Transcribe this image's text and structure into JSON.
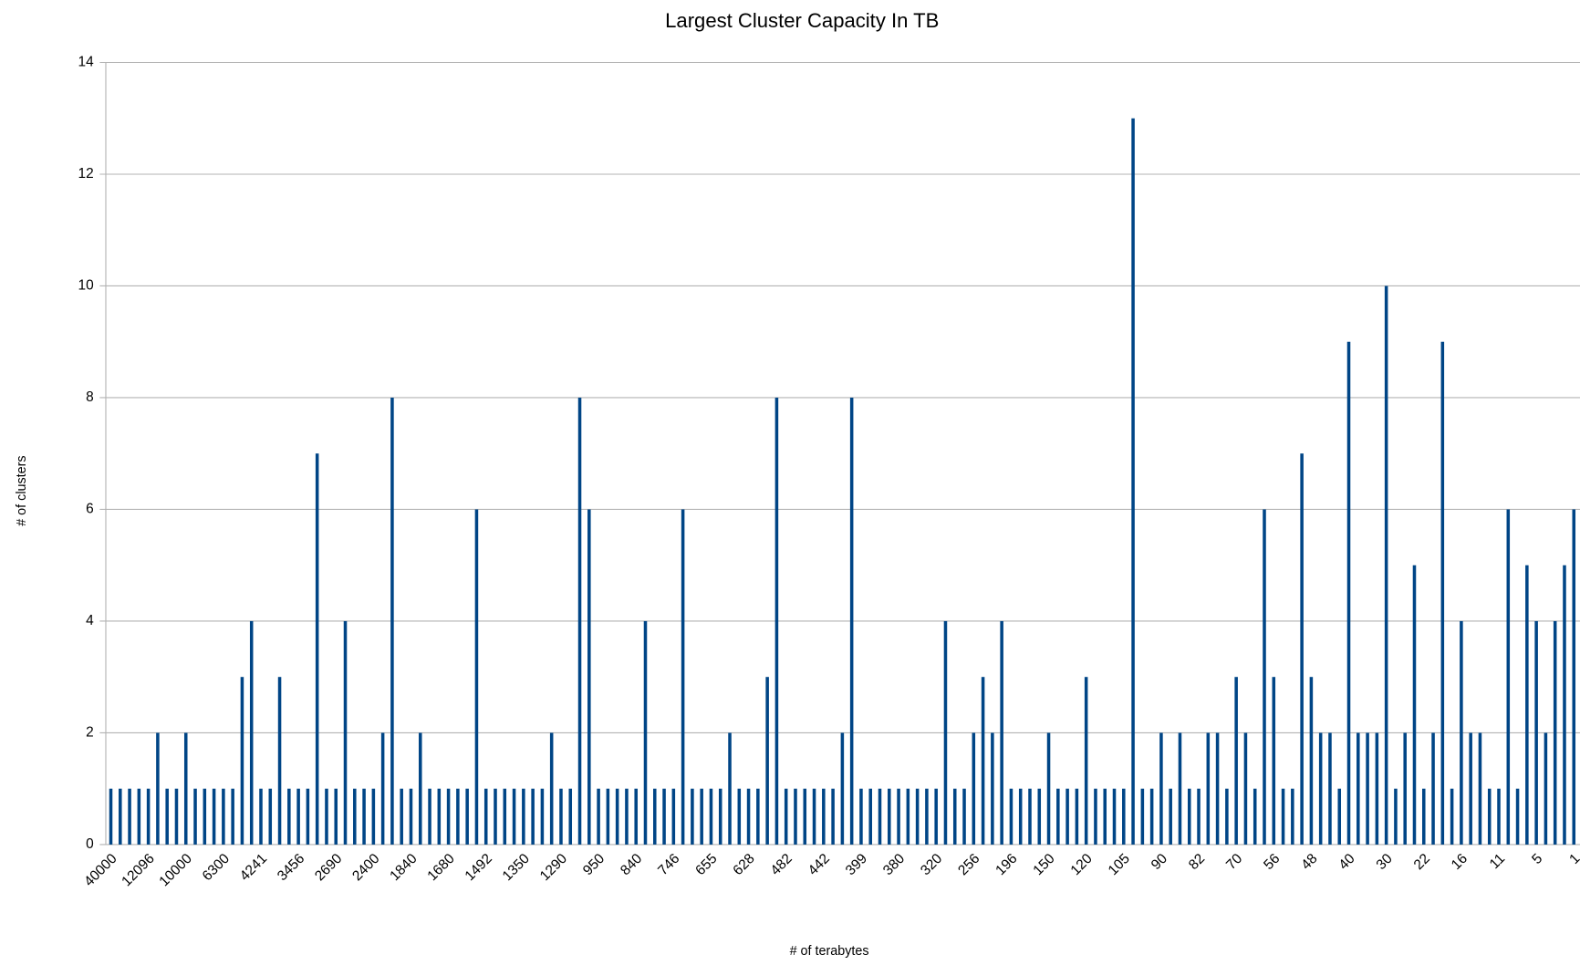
{
  "chart_data": {
    "type": "bar",
    "title": "Largest Cluster Capacity In TB",
    "x_label": "# of terabytes",
    "y_label": "# of clusters",
    "categories": [
      "40000",
      null,
      null,
      null,
      "12096",
      null,
      null,
      null,
      "10000",
      null,
      null,
      null,
      "6300",
      null,
      null,
      null,
      "4241",
      null,
      null,
      null,
      "3456",
      null,
      null,
      null,
      "2690",
      null,
      null,
      null,
      "2400",
      null,
      null,
      null,
      "1840",
      null,
      null,
      null,
      "1680",
      null,
      null,
      null,
      "1492",
      null,
      null,
      null,
      "1350",
      null,
      null,
      null,
      "1290",
      null,
      null,
      null,
      "950",
      null,
      null,
      null,
      "840",
      null,
      null,
      null,
      "746",
      null,
      null,
      null,
      "655",
      null,
      null,
      null,
      "628",
      null,
      null,
      null,
      "482",
      null,
      null,
      null,
      "442",
      null,
      null,
      null,
      "399",
      null,
      null,
      null,
      "380",
      null,
      null,
      null,
      "320",
      null,
      null,
      null,
      "256",
      null,
      null,
      null,
      "196",
      null,
      null,
      null,
      "150",
      null,
      null,
      null,
      "120",
      null,
      null,
      null,
      "105",
      null,
      null,
      null,
      "90",
      null,
      null,
      null,
      "82",
      null,
      null,
      null,
      "70",
      null,
      null,
      null,
      "56",
      null,
      null,
      null,
      "48",
      null,
      null,
      null,
      "40",
      null,
      null,
      null,
      "30",
      null,
      null,
      null,
      "22",
      null,
      null,
      null,
      "16",
      null,
      null,
      null,
      "11",
      null,
      null,
      null,
      "5",
      null,
      null,
      null,
      "1"
    ],
    "values": [
      1,
      1,
      1,
      1,
      1,
      2,
      1,
      1,
      2,
      1,
      1,
      1,
      1,
      1,
      3,
      4,
      1,
      1,
      3,
      1,
      1,
      1,
      7,
      1,
      1,
      4,
      1,
      1,
      1,
      2,
      8,
      1,
      1,
      2,
      1,
      1,
      1,
      1,
      1,
      6,
      1,
      1,
      1,
      1,
      1,
      1,
      1,
      2,
      1,
      1,
      8,
      6,
      1,
      1,
      1,
      1,
      1,
      4,
      1,
      1,
      1,
      6,
      1,
      1,
      1,
      1,
      2,
      1,
      1,
      1,
      3,
      8,
      1,
      1,
      1,
      1,
      1,
      1,
      2,
      8,
      1,
      1,
      1,
      1,
      1,
      1,
      1,
      1,
      1,
      4,
      1,
      1,
      2,
      3,
      2,
      4,
      1,
      1,
      1,
      1,
      2,
      1,
      1,
      1,
      3,
      1,
      1,
      1,
      1,
      13,
      1,
      1,
      2,
      1,
      2,
      1,
      1,
      2,
      2,
      1,
      3,
      2,
      1,
      6,
      3,
      1,
      1,
      7,
      3,
      2,
      2,
      1,
      9,
      2,
      2,
      2,
      10,
      1,
      2,
      5,
      1,
      2,
      9,
      1,
      4,
      2,
      2,
      1,
      1,
      6,
      1,
      5,
      4,
      2,
      4,
      5,
      6
    ],
    "color": "#004586",
    "ylim": [
      0,
      14
    ],
    "yticks": [
      0,
      2,
      4,
      6,
      8,
      10,
      12,
      14
    ],
    "grid": true
  }
}
